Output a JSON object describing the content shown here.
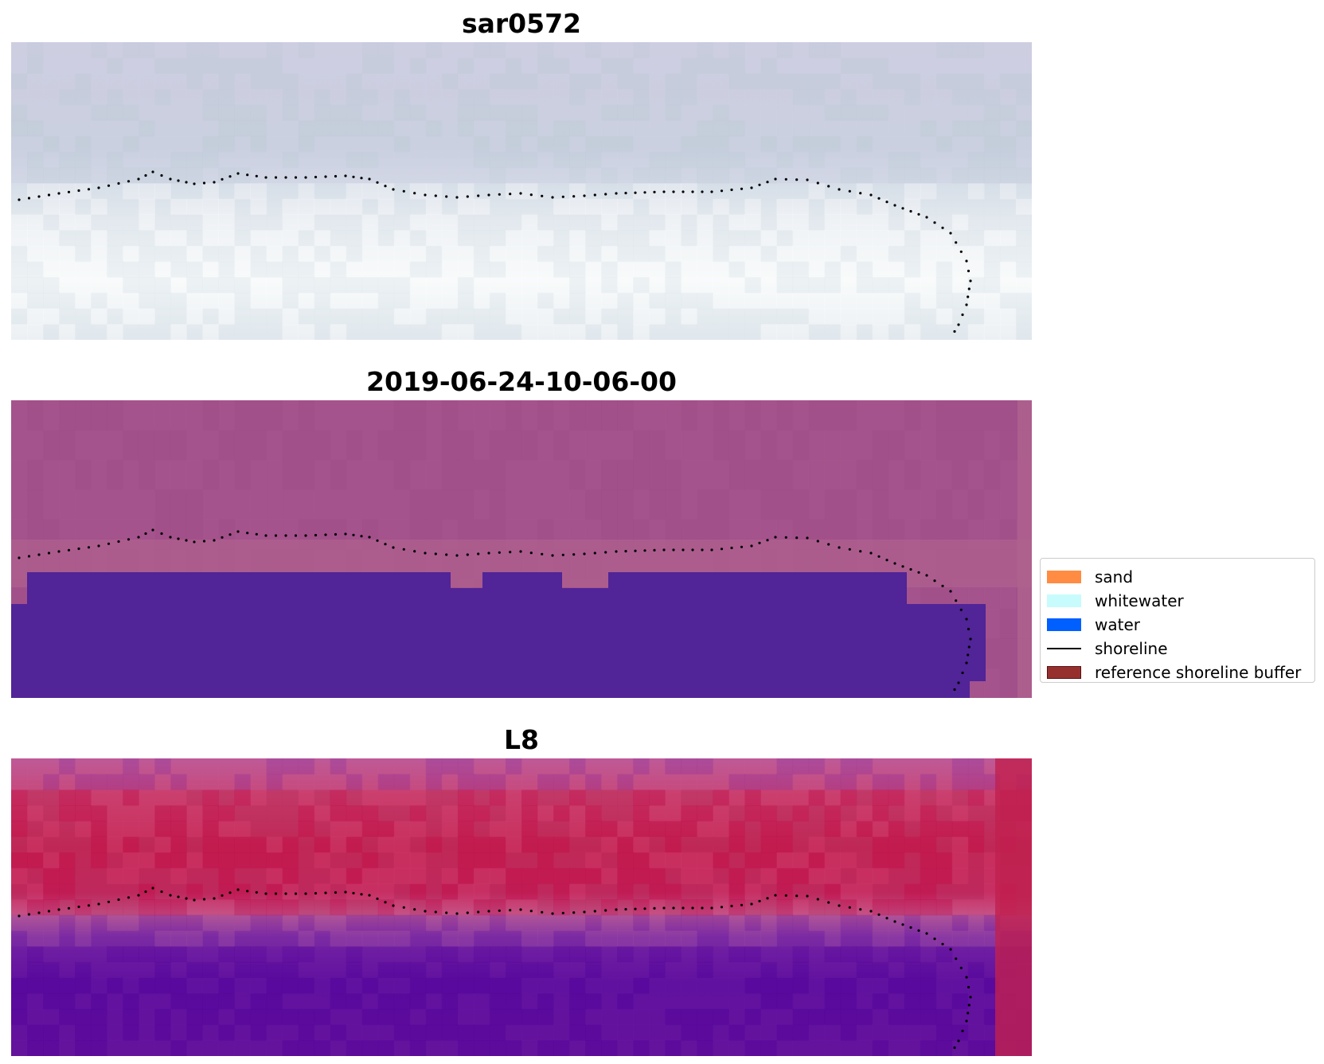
{
  "panels": [
    {
      "title": "sar0572",
      "style": "rgb"
    },
    {
      "title": "2019-06-24-10-06-00",
      "style": "classified"
    },
    {
      "title": "L8",
      "style": "index"
    }
  ],
  "legend": {
    "items": [
      {
        "label": "sand",
        "color": "#ff8c42",
        "kind": "patch"
      },
      {
        "label": "whitewater",
        "color": "#c8fbfb",
        "kind": "patch"
      },
      {
        "label": "water",
        "color": "#0060ff",
        "kind": "patch"
      },
      {
        "label": "shoreline",
        "color": "#000000",
        "kind": "line"
      },
      {
        "label": "reference shoreline buffer",
        "color": "#96302f",
        "kind": "patch",
        "edge": "#5a1010"
      }
    ]
  },
  "colors": {
    "shoreline_dots": "#000000",
    "classified_background": "#a4528b",
    "classified_water": "#512498",
    "index_land": "#c22455",
    "index_water": "#5a0a9a"
  }
}
